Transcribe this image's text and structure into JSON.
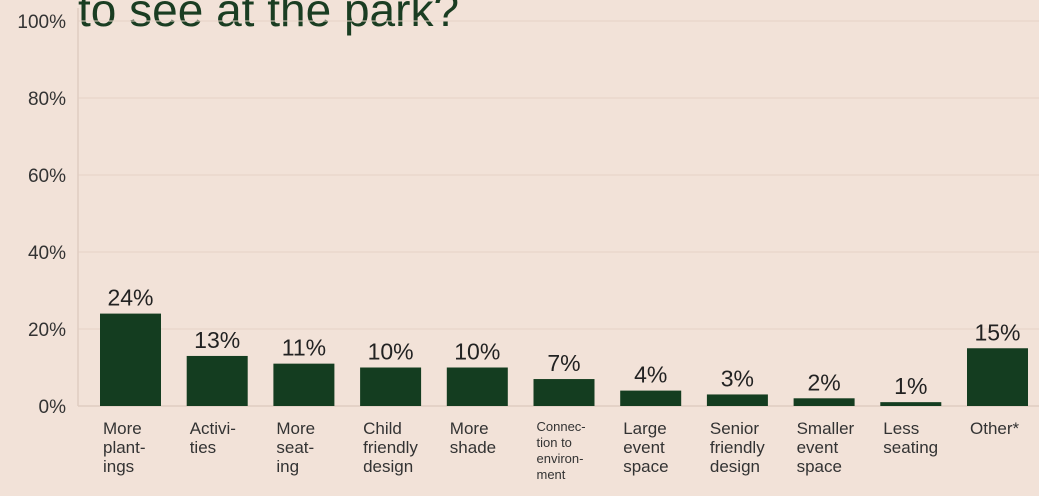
{
  "chart_data": {
    "type": "bar",
    "title_fragment": "to see at the park?",
    "xlabel": "",
    "ylabel": "",
    "ylim": [
      0,
      100
    ],
    "yticks": [
      "0%",
      "20%",
      "40%",
      "60%",
      "80%",
      "100%"
    ],
    "ytick_values": [
      0,
      20,
      40,
      60,
      80,
      100
    ],
    "grid": true,
    "bar_color": "#143d20",
    "categories": [
      [
        "More",
        "plant-",
        "ings"
      ],
      [
        "Activi-",
        "ties"
      ],
      [
        "More",
        "seat-",
        "ing"
      ],
      [
        "Child",
        "friendly",
        "design"
      ],
      [
        "More",
        "shade"
      ],
      [
        "Connec-",
        "tion to",
        "environ-",
        "ment"
      ],
      [
        "Large",
        "event",
        "space"
      ],
      [
        "Senior",
        "friendly",
        "design"
      ],
      [
        "Smaller",
        "event",
        "space"
      ],
      [
        "Less",
        "seating"
      ],
      [
        "Other*"
      ]
    ],
    "small_label_indices": [
      5
    ],
    "values": [
      24,
      13,
      11,
      10,
      10,
      7,
      4,
      3,
      2,
      1,
      15
    ],
    "value_labels": [
      "24%",
      "13%",
      "11%",
      "10%",
      "10%",
      "7%",
      "4%",
      "3%",
      "2%",
      "1%",
      "15%"
    ]
  }
}
